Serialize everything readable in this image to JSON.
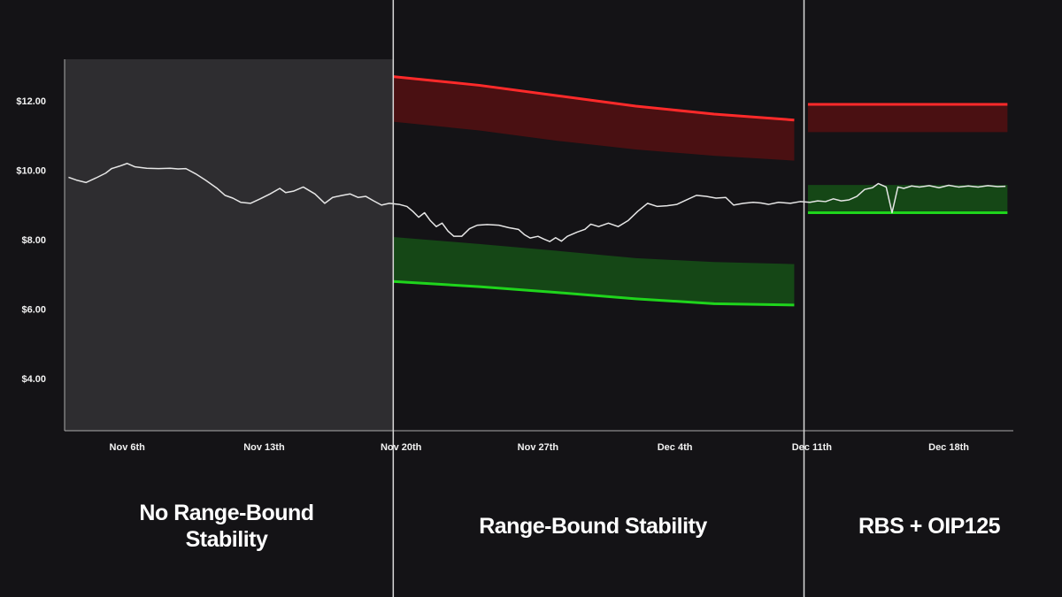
{
  "chart_data": {
    "type": "line",
    "title": "",
    "xlabel": "",
    "ylabel": "",
    "ylim": [
      2.5,
      13.2
    ],
    "y_ticks": [
      {
        "value": 12,
        "label": "$12.00"
      },
      {
        "value": 10,
        "label": "$10.00"
      },
      {
        "value": 8,
        "label": "$8.00"
      },
      {
        "value": 6,
        "label": "$6.00"
      },
      {
        "value": 4,
        "label": "$4.00"
      }
    ],
    "x_ticks": [
      {
        "day": 6,
        "label": "Nov 6th"
      },
      {
        "day": 13,
        "label": "Nov 13th"
      },
      {
        "day": 20,
        "label": "Nov 20th"
      },
      {
        "day": 27,
        "label": "Nov 27th"
      },
      {
        "day": 34,
        "label": "Dec 4th"
      },
      {
        "day": 41,
        "label": "Dec 11th"
      },
      {
        "day": 48,
        "label": "Dec 18th"
      }
    ],
    "xlim": [
      2.8,
      51.3
    ],
    "grid": false,
    "sections": [
      {
        "label": "No Range-Bound\nStability",
        "start": 2.8,
        "end": 19.6,
        "shaded": true
      },
      {
        "label": "Range-Bound Stability",
        "start": 19.6,
        "end": 40.6,
        "shaded": false
      },
      {
        "label": "RBS + OIP125",
        "start": 40.6,
        "end": 51.3,
        "shaded": false
      }
    ],
    "upper_band": [
      {
        "day": 19.6,
        "top": 12.7,
        "bottom": 11.4
      },
      {
        "day": 24.0,
        "top": 12.45,
        "bottom": 11.15
      },
      {
        "day": 28.0,
        "top": 12.15,
        "bottom": 10.85
      },
      {
        "day": 32.0,
        "top": 11.85,
        "bottom": 10.6
      },
      {
        "day": 36.0,
        "top": 11.62,
        "bottom": 10.42
      },
      {
        "day": 40.1,
        "top": 11.45,
        "bottom": 10.28
      },
      {
        "day": 40.8,
        "top": 11.9,
        "bottom": 11.1
      },
      {
        "day": 51.0,
        "top": 11.9,
        "bottom": 11.1
      }
    ],
    "lower_band": [
      {
        "day": 19.6,
        "top": 8.08,
        "bottom": 6.8
      },
      {
        "day": 24.0,
        "top": 7.88,
        "bottom": 6.65
      },
      {
        "day": 28.0,
        "top": 7.68,
        "bottom": 6.48
      },
      {
        "day": 32.0,
        "top": 7.47,
        "bottom": 6.3
      },
      {
        "day": 36.0,
        "top": 7.36,
        "bottom": 6.16
      },
      {
        "day": 40.1,
        "top": 7.3,
        "bottom": 6.12
      },
      {
        "day": 40.8,
        "top": 9.58,
        "bottom": 8.78
      },
      {
        "day": 51.0,
        "top": 9.58,
        "bottom": 8.78
      }
    ],
    "series": [
      {
        "values": [
          [
            3.0,
            9.8
          ],
          [
            3.4,
            9.72
          ],
          [
            3.9,
            9.65
          ],
          [
            4.4,
            9.78
          ],
          [
            4.9,
            9.92
          ],
          [
            5.2,
            10.05
          ],
          [
            5.6,
            10.12
          ],
          [
            6.0,
            10.2
          ],
          [
            6.4,
            10.1
          ],
          [
            7.0,
            10.06
          ],
          [
            7.6,
            10.05
          ],
          [
            8.2,
            10.06
          ],
          [
            8.6,
            10.04
          ],
          [
            9.0,
            10.05
          ],
          [
            9.5,
            9.9
          ],
          [
            10.0,
            9.72
          ],
          [
            10.6,
            9.48
          ],
          [
            11.0,
            9.28
          ],
          [
            11.4,
            9.2
          ],
          [
            11.8,
            9.08
          ],
          [
            12.3,
            9.05
          ],
          [
            12.8,
            9.18
          ],
          [
            13.3,
            9.32
          ],
          [
            13.8,
            9.48
          ],
          [
            14.1,
            9.36
          ],
          [
            14.5,
            9.4
          ],
          [
            15.0,
            9.52
          ],
          [
            15.6,
            9.32
          ],
          [
            16.1,
            9.05
          ],
          [
            16.5,
            9.22
          ],
          [
            17.0,
            9.28
          ],
          [
            17.4,
            9.32
          ],
          [
            17.8,
            9.22
          ],
          [
            18.2,
            9.25
          ],
          [
            18.6,
            9.12
          ],
          [
            19.0,
            9.0
          ],
          [
            19.4,
            9.05
          ],
          [
            19.9,
            9.02
          ],
          [
            20.3,
            8.96
          ],
          [
            20.6,
            8.82
          ],
          [
            20.9,
            8.65
          ],
          [
            21.2,
            8.78
          ],
          [
            21.5,
            8.55
          ],
          [
            21.8,
            8.38
          ],
          [
            22.1,
            8.48
          ],
          [
            22.4,
            8.25
          ],
          [
            22.7,
            8.1
          ],
          [
            23.1,
            8.1
          ],
          [
            23.5,
            8.32
          ],
          [
            23.9,
            8.42
          ],
          [
            24.4,
            8.44
          ],
          [
            25.0,
            8.42
          ],
          [
            25.5,
            8.35
          ],
          [
            26.0,
            8.3
          ],
          [
            26.3,
            8.15
          ],
          [
            26.6,
            8.05
          ],
          [
            27.0,
            8.1
          ],
          [
            27.3,
            8.02
          ],
          [
            27.6,
            7.95
          ],
          [
            27.9,
            8.06
          ],
          [
            28.2,
            7.96
          ],
          [
            28.5,
            8.1
          ],
          [
            29.0,
            8.22
          ],
          [
            29.4,
            8.3
          ],
          [
            29.7,
            8.45
          ],
          [
            30.1,
            8.38
          ],
          [
            30.6,
            8.48
          ],
          [
            31.1,
            8.38
          ],
          [
            31.6,
            8.55
          ],
          [
            32.1,
            8.82
          ],
          [
            32.6,
            9.05
          ],
          [
            33.1,
            8.96
          ],
          [
            33.6,
            8.98
          ],
          [
            34.1,
            9.02
          ],
          [
            34.6,
            9.15
          ],
          [
            35.1,
            9.28
          ],
          [
            35.6,
            9.25
          ],
          [
            36.1,
            9.2
          ],
          [
            36.6,
            9.22
          ],
          [
            37.0,
            9.0
          ],
          [
            37.5,
            9.05
          ],
          [
            38.0,
            9.08
          ],
          [
            38.4,
            9.06
          ],
          [
            38.8,
            9.02
          ],
          [
            39.3,
            9.08
          ],
          [
            39.9,
            9.05
          ],
          [
            40.4,
            9.1
          ],
          [
            40.9,
            9.08
          ],
          [
            41.3,
            9.12
          ],
          [
            41.7,
            9.1
          ],
          [
            42.1,
            9.18
          ],
          [
            42.5,
            9.12
          ],
          [
            42.9,
            9.15
          ],
          [
            43.3,
            9.25
          ],
          [
            43.7,
            9.45
          ],
          [
            44.1,
            9.5
          ],
          [
            44.4,
            9.62
          ],
          [
            44.8,
            9.52
          ],
          [
            45.1,
            8.78
          ],
          [
            45.4,
            9.52
          ],
          [
            45.7,
            9.48
          ],
          [
            46.1,
            9.55
          ],
          [
            46.5,
            9.52
          ],
          [
            47.0,
            9.56
          ],
          [
            47.5,
            9.5
          ],
          [
            48.0,
            9.57
          ],
          [
            48.5,
            9.52
          ],
          [
            49.0,
            9.55
          ],
          [
            49.5,
            9.52
          ],
          [
            50.0,
            9.56
          ],
          [
            50.5,
            9.53
          ],
          [
            50.9,
            9.54
          ]
        ]
      }
    ]
  },
  "colors": {
    "background": "#141316",
    "shaded_region": "#2e2d30",
    "axis": "#aaaaaa",
    "divider": "#d9d9d9",
    "price_line": "#e6e6e6",
    "upper_band_fill": "#4a1012",
    "upper_band_line": "#ff2a2a",
    "lower_band_fill": "#154716",
    "lower_band_line": "#1fd51c"
  }
}
